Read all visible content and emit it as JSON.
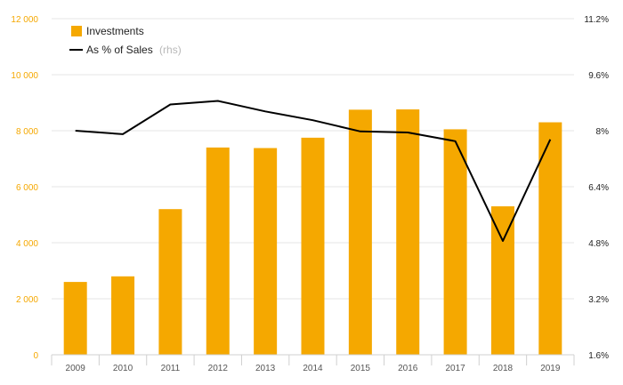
{
  "chart_data": {
    "type": "bar",
    "categories": [
      "2009",
      "2010",
      "2011",
      "2012",
      "2013",
      "2014",
      "2015",
      "2016",
      "2017",
      "2018",
      "2019"
    ],
    "series": [
      {
        "name": "Investments",
        "type": "bar",
        "axis": "left",
        "color": "#f5a800",
        "values": [
          2600,
          2800,
          5200,
          7400,
          7380,
          7750,
          8750,
          8760,
          8050,
          5300,
          8300
        ]
      },
      {
        "name": "As % of Sales",
        "name_suffix": "(rhs)",
        "type": "line",
        "axis": "right",
        "color": "#000000",
        "values": [
          8.0,
          7.9,
          8.75,
          8.85,
          8.55,
          8.3,
          7.98,
          7.95,
          7.7,
          4.85,
          7.75
        ]
      }
    ],
    "y_left": {
      "ylim": [
        0,
        12000
      ],
      "ticks": [
        0,
        2000,
        4000,
        6000,
        8000,
        10000,
        12000
      ],
      "tick_labels": [
        "0",
        "2 000",
        "4 000",
        "6 000",
        "8 000",
        "10 000",
        "12 000"
      ],
      "color": "#f5a800"
    },
    "y_right": {
      "ylim": [
        1.6,
        11.2
      ],
      "ticks": [
        1.6,
        3.2,
        4.8,
        6.4,
        8.0,
        9.6,
        11.2
      ],
      "tick_labels": [
        "1.6%",
        "3.2%",
        "4.8%",
        "6.4%",
        "8%",
        "9.6%",
        "11.2%"
      ],
      "color": "#222222"
    },
    "grid": true,
    "legend_position": "top-left"
  }
}
